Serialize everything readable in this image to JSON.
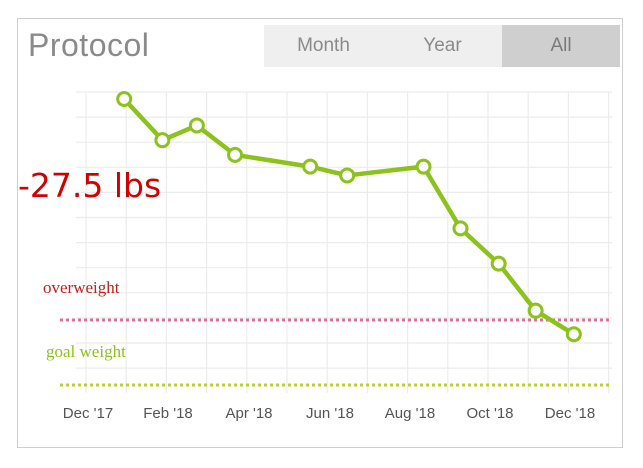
{
  "header": {
    "title": "Protocol",
    "tabs": [
      {
        "label": "Month",
        "active": false
      },
      {
        "label": "Year",
        "active": false
      },
      {
        "label": "All",
        "active": true
      }
    ]
  },
  "summary": {
    "change_text": "-27.5 lbs",
    "change_color": "#d40000"
  },
  "reference_lines": [
    {
      "label": "overweight",
      "color": "#e07090",
      "label_color": "#c0201e",
      "value": 22
    },
    {
      "label": "goal weight",
      "color": "#b5d334",
      "label_color": "#8cc21c",
      "value": 7
    }
  ],
  "chart_data": {
    "type": "line",
    "x_ticks": [
      "Dec '17",
      "Feb '18",
      "Apr '18",
      "Jun '18",
      "Aug '18",
      "Oct '18",
      "Dec '18"
    ],
    "series": [
      {
        "color": "#8cc21c",
        "points": [
          {
            "x": "2018-01-01",
            "y": 100
          },
          {
            "x": "2018-02-01",
            "y": 86
          },
          {
            "x": "2018-03-01",
            "y": 91
          },
          {
            "x": "2018-04-01",
            "y": 81
          },
          {
            "x": "2018-06-01",
            "y": 77
          },
          {
            "x": "2018-07-01",
            "y": 74
          },
          {
            "x": "2018-09-01",
            "y": 77
          },
          {
            "x": "2018-10-01",
            "y": 56
          },
          {
            "x": "2018-11-01",
            "y": 44
          },
          {
            "x": "2018-12-01",
            "y": 28
          },
          {
            "x": "2019-01-01",
            "y": 20
          }
        ]
      }
    ],
    "ylim": [
      0,
      100
    ],
    "grid": true,
    "x_axis": "dates"
  }
}
